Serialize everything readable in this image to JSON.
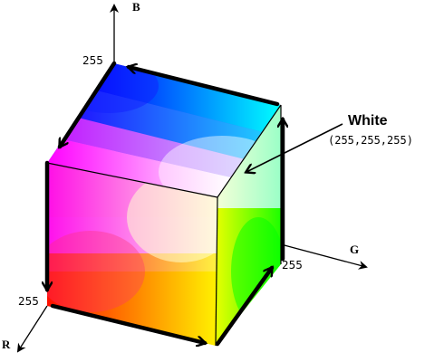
{
  "axes": {
    "b_label": "B",
    "g_label": "G",
    "r_label": "R",
    "b_max": "255",
    "g_max": "255",
    "r_max": "255"
  },
  "white_callout": {
    "label": "White",
    "value": "(255,255,255)"
  },
  "colors": {
    "black": "#000000",
    "red": "#ff0000",
    "green": "#00ff00",
    "blue": "#0000ff",
    "cyan": "#00ffff",
    "magenta": "#ff00ff",
    "yellow": "#ffff00",
    "white": "#ffffff"
  }
}
